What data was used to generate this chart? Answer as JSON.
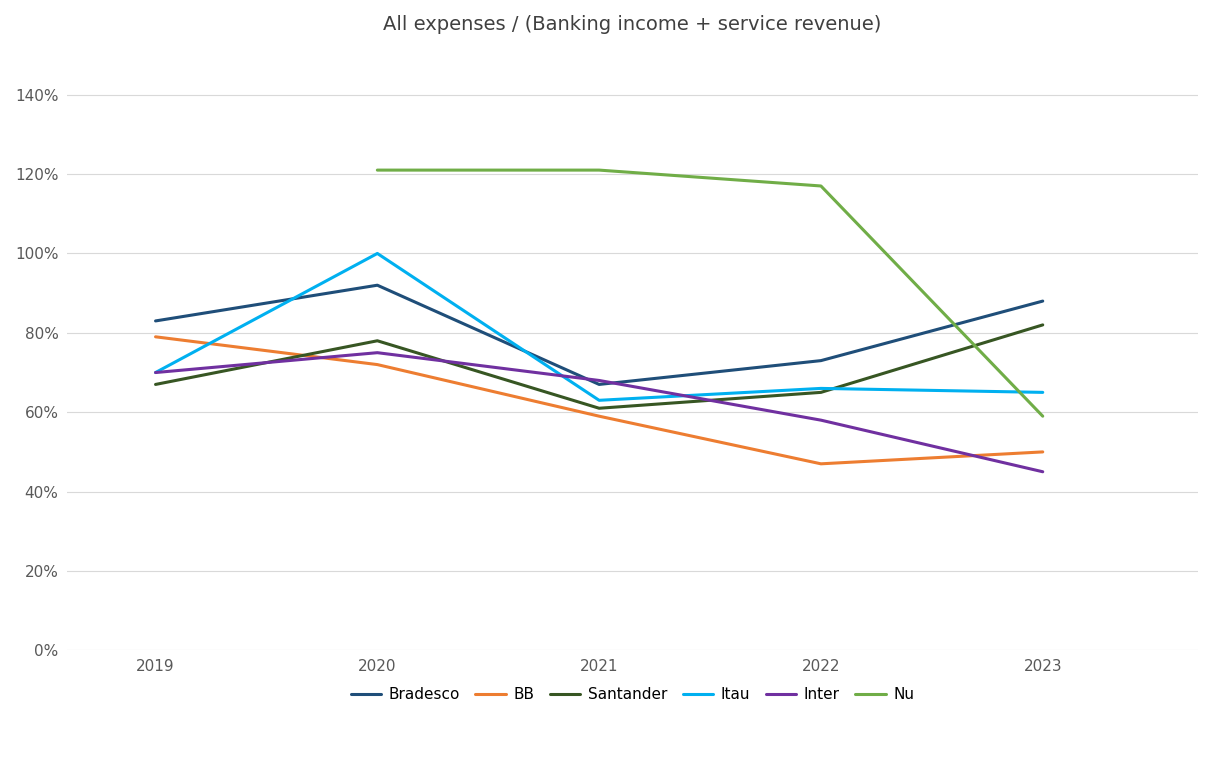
{
  "title": "All expenses / (Banking income + service revenue)",
  "years": [
    2019,
    2020,
    2021,
    2022,
    2023
  ],
  "series": {
    "Bradesco": {
      "values": [
        0.83,
        0.92,
        0.67,
        0.73,
        0.88
      ],
      "color": "#1f4e79",
      "linewidth": 2.2
    },
    "BB": {
      "values": [
        0.79,
        0.72,
        0.59,
        0.47,
        0.5
      ],
      "color": "#ed7d31",
      "linewidth": 2.2
    },
    "Santander": {
      "values": [
        0.67,
        0.78,
        0.61,
        0.65,
        0.82
      ],
      "color": "#375623",
      "linewidth": 2.2
    },
    "Itau": {
      "values": [
        0.7,
        1.0,
        0.63,
        0.66,
        0.65
      ],
      "color": "#00b0f0",
      "linewidth": 2.2
    },
    "Inter": {
      "values": [
        0.7,
        0.75,
        0.68,
        0.58,
        0.45
      ],
      "color": "#7030a0",
      "linewidth": 2.2
    },
    "Nu": {
      "values": [
        null,
        1.21,
        1.21,
        1.17,
        0.59
      ],
      "color": "#70ad47",
      "linewidth": 2.2
    }
  },
  "ylim": [
    0,
    1.5
  ],
  "yticks": [
    0.0,
    0.2,
    0.4,
    0.6,
    0.8,
    1.0,
    1.2,
    1.4
  ],
  "ytick_labels": [
    "0%",
    "20%",
    "40%",
    "60%",
    "80%",
    "100%",
    "120%",
    "140%"
  ],
  "background_color": "#ffffff",
  "grid_color": "#d9d9d9",
  "legend_order": [
    "Bradesco",
    "BB",
    "Santander",
    "Itau",
    "Inter",
    "Nu"
  ],
  "title_fontsize": 14,
  "tick_fontsize": 11,
  "legend_fontsize": 11,
  "xlim_left": 2018.6,
  "xlim_right": 2023.7
}
